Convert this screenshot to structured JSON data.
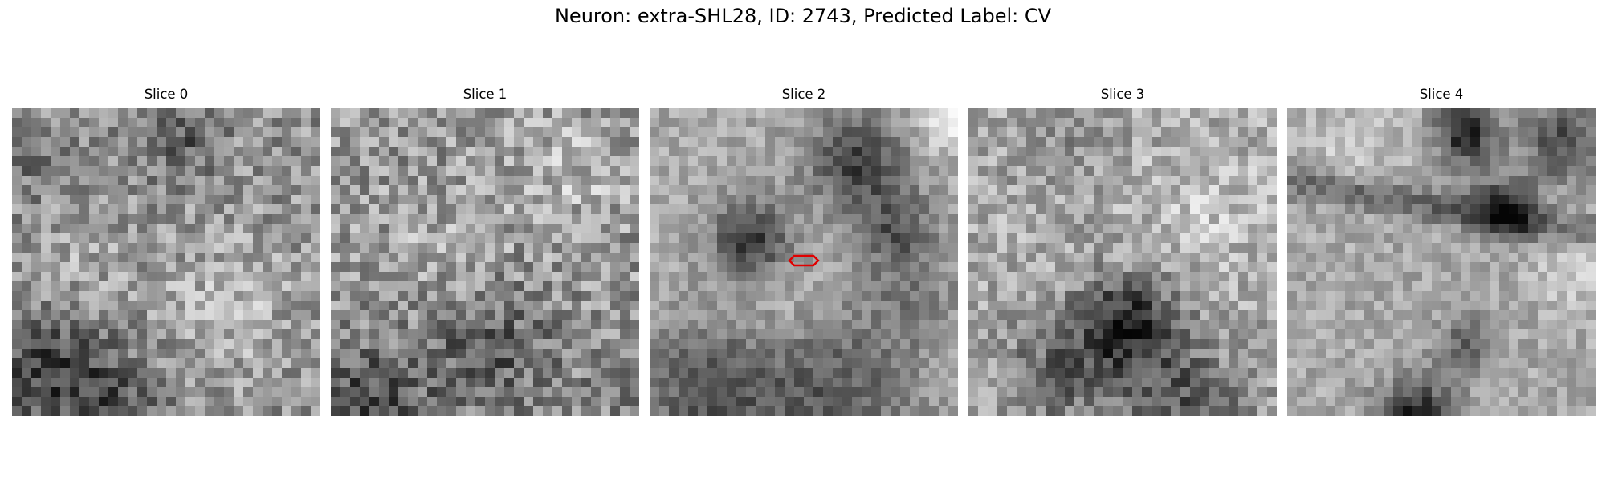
{
  "figure": {
    "title": "Neuron: extra-SHL28, ID: 2743, Predicted Label: CV"
  },
  "panels": [
    {
      "title": "Slice 0"
    },
    {
      "title": "Slice 1"
    },
    {
      "title": "Slice 2"
    },
    {
      "title": "Slice 3"
    },
    {
      "title": "Slice 4"
    }
  ],
  "colors": {
    "outline": "#e00000",
    "cmap": "gray"
  }
}
